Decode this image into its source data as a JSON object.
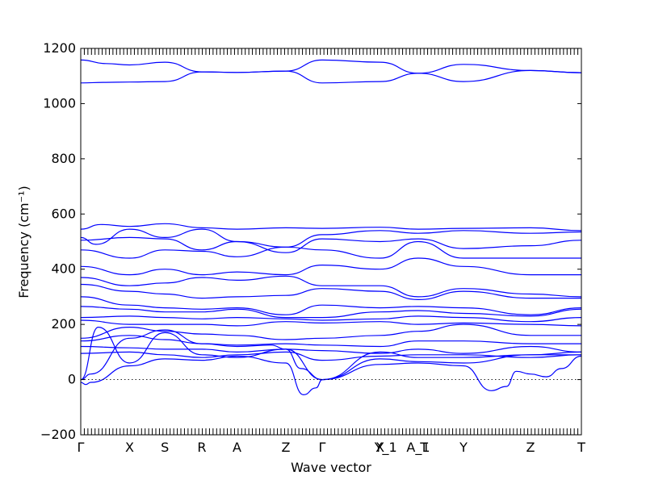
{
  "chart_data": {
    "type": "line",
    "title": "",
    "xlabel": "Wave vector",
    "ylabel": "Frequency (cm⁻¹)",
    "ylim": [
      -200,
      1200
    ],
    "yticks": [
      -200,
      0,
      200,
      400,
      600,
      800,
      1000,
      1200
    ],
    "grid": false,
    "legend": "none",
    "line_color": "#0000ff",
    "reference_line": {
      "y": 0,
      "style": "dotted",
      "color": "#000000"
    },
    "high_symmetry_points": [
      {
        "label": "Γ",
        "x": 0.0
      },
      {
        "label": "X",
        "x": 0.0976
      },
      {
        "label": "S",
        "x": 0.1681
      },
      {
        "label": "R",
        "x": 0.2419
      },
      {
        "label": "A",
        "x": 0.3121
      },
      {
        "label": "Z",
        "x": 0.4097
      },
      {
        "label": "Γ",
        "x": 0.4822
      },
      {
        "label": "X",
        "x": 0.5977
      },
      {
        "label": "Y_1",
        "x": 0.6093
      },
      {
        "label": "A_1",
        "x": 0.6741
      },
      {
        "label": "T",
        "x": 0.6857
      },
      {
        "label": "Y",
        "x": 0.7645
      },
      {
        "label": "Z",
        "x": 0.8984
      },
      {
        "label": "T",
        "x": 1.0
      }
    ],
    "series": [
      {
        "x": [
          0.0,
          0.05,
          0.0976,
          0.1681,
          0.2419,
          0.3121,
          0.4097,
          0.4822,
          0.5977,
          0.6741,
          0.7645,
          0.8984,
          1.0
        ],
        "y": [
          1158,
          1145,
          1140,
          1150,
          1115,
          1113,
          1118,
          1158,
          1150,
          1110,
          1142,
          1120,
          1112
        ]
      },
      {
        "x": [
          0.0,
          0.05,
          0.0976,
          0.1681,
          0.2419,
          0.3121,
          0.4097,
          0.4822,
          0.5977,
          0.6741,
          0.7645,
          0.8984,
          1.0
        ],
        "y": [
          1075,
          1077,
          1078,
          1080,
          1115,
          1113,
          1118,
          1075,
          1080,
          1110,
          1080,
          1120,
          1112
        ]
      },
      {
        "x": [
          0.0,
          0.04,
          0.0976,
          0.1681,
          0.2419,
          0.3121,
          0.4097,
          0.4822,
          0.5977,
          0.6741,
          0.7645,
          0.8984,
          1.0
        ],
        "y": [
          545,
          562,
          555,
          565,
          550,
          545,
          550,
          548,
          552,
          545,
          548,
          550,
          540
        ]
      },
      {
        "x": [
          0.0,
          0.03,
          0.0976,
          0.1681,
          0.2419,
          0.3121,
          0.4097,
          0.4822,
          0.5977,
          0.6741,
          0.7645,
          0.8984,
          1.0
        ],
        "y": [
          515,
          490,
          545,
          515,
          545,
          500,
          480,
          525,
          540,
          530,
          540,
          530,
          535
        ]
      },
      {
        "x": [
          0.0,
          0.0976,
          0.1681,
          0.2419,
          0.3121,
          0.4097,
          0.4822,
          0.5977,
          0.6741,
          0.7645,
          0.8984,
          1.0
        ],
        "y": [
          505,
          515,
          510,
          470,
          500,
          460,
          510,
          500,
          510,
          475,
          485,
          505
        ]
      },
      {
        "x": [
          0.0,
          0.0976,
          0.1681,
          0.2419,
          0.3121,
          0.4097,
          0.4822,
          0.5977,
          0.6741,
          0.7645,
          0.8984,
          1.0
        ],
        "y": [
          470,
          440,
          470,
          465,
          445,
          480,
          470,
          440,
          500,
          440,
          440,
          440
        ]
      },
      {
        "x": [
          0.0,
          0.0976,
          0.1681,
          0.2419,
          0.3121,
          0.4097,
          0.4822,
          0.5977,
          0.6741,
          0.7645,
          0.8984,
          1.0
        ],
        "y": [
          410,
          380,
          400,
          380,
          390,
          380,
          415,
          400,
          440,
          410,
          380,
          380
        ]
      },
      {
        "x": [
          0.0,
          0.0976,
          0.1681,
          0.2419,
          0.3121,
          0.4097,
          0.4822,
          0.5977,
          0.6741,
          0.7645,
          0.8984,
          1.0
        ],
        "y": [
          370,
          340,
          350,
          370,
          360,
          375,
          340,
          340,
          300,
          330,
          310,
          300
        ]
      },
      {
        "x": [
          0.0,
          0.0976,
          0.1681,
          0.2419,
          0.3121,
          0.4097,
          0.4822,
          0.5977,
          0.6741,
          0.7645,
          0.8984,
          1.0
        ],
        "y": [
          345,
          320,
          310,
          295,
          300,
          305,
          330,
          320,
          290,
          320,
          295,
          295
        ]
      },
      {
        "x": [
          0.0,
          0.0976,
          0.1681,
          0.2419,
          0.3121,
          0.4097,
          0.4822,
          0.5977,
          0.6741,
          0.7645,
          0.8984,
          1.0
        ],
        "y": [
          300,
          270,
          260,
          255,
          260,
          235,
          270,
          260,
          265,
          260,
          235,
          260
        ]
      },
      {
        "x": [
          0.0,
          0.0976,
          0.1681,
          0.2419,
          0.3121,
          0.4097,
          0.4822,
          0.5977,
          0.6741,
          0.7645,
          0.8984,
          1.0
        ],
        "y": [
          265,
          255,
          245,
          245,
          255,
          225,
          225,
          245,
          250,
          240,
          230,
          255
        ]
      },
      {
        "x": [
          0.0,
          0.0976,
          0.1681,
          0.2419,
          0.3121,
          0.4097,
          0.4822,
          0.5977,
          0.6741,
          0.7645,
          0.8984,
          1.0
        ],
        "y": [
          225,
          230,
          225,
          220,
          225,
          220,
          215,
          220,
          230,
          225,
          210,
          225
        ]
      },
      {
        "x": [
          0.0,
          0.0976,
          0.1681,
          0.2419,
          0.3121,
          0.4097,
          0.4822,
          0.5977,
          0.6741,
          0.7645,
          0.8984,
          1.0
        ],
        "y": [
          215,
          200,
          200,
          200,
          195,
          210,
          205,
          210,
          200,
          205,
          200,
          195
        ]
      },
      {
        "x": [
          0.0,
          0.0976,
          0.1681,
          0.2419,
          0.3121,
          0.4097,
          0.4822,
          0.5977,
          0.6741,
          0.7645,
          0.8984,
          1.0
        ],
        "y": [
          150,
          190,
          175,
          165,
          160,
          145,
          150,
          160,
          175,
          200,
          160,
          160
        ]
      },
      {
        "x": [
          0.0,
          0.0976,
          0.1681,
          0.2419,
          0.3121,
          0.4097,
          0.4822,
          0.5977,
          0.6741,
          0.7645,
          0.8984,
          1.0
        ],
        "y": [
          140,
          160,
          145,
          130,
          125,
          130,
          125,
          120,
          140,
          140,
          130,
          130
        ]
      },
      {
        "x": [
          0.0,
          0.0976,
          0.1681,
          0.2419,
          0.3121,
          0.4097,
          0.4822,
          0.5977,
          0.6741,
          0.7645,
          0.8984,
          1.0
        ],
        "y": [
          120,
          115,
          110,
          110,
          100,
          110,
          105,
          95,
          110,
          95,
          120,
          100
        ]
      },
      {
        "x": [
          0.0,
          0.0976,
          0.1681,
          0.2419,
          0.3121,
          0.4097,
          0.4822,
          0.5977,
          0.6741,
          0.7645,
          0.8984,
          1.0
        ],
        "y": [
          95,
          100,
          90,
          80,
          90,
          100,
          70,
          85,
          90,
          90,
          80,
          90
        ]
      },
      {
        "x": [
          0.0,
          0.035,
          0.0976,
          0.1681,
          0.2419,
          0.3121,
          0.4097,
          0.4822,
          0.5977,
          0.6741,
          0.7645,
          0.8984,
          1.0
        ],
        "y": [
          0,
          190,
          60,
          170,
          90,
          80,
          110,
          0,
          100,
          80,
          80,
          90,
          90
        ]
      },
      {
        "x": [
          0.0,
          0.02,
          0.0976,
          0.1681,
          0.2419,
          0.3121,
          0.38,
          0.4097,
          0.44,
          0.4822,
          0.5977,
          0.6741,
          0.7645,
          0.8984,
          1.0
        ],
        "y": [
          0,
          20,
          150,
          180,
          130,
          120,
          125,
          110,
          40,
          0,
          75,
          65,
          60,
          90,
          100
        ]
      },
      {
        "x": [
          0.0,
          0.01,
          0.02,
          0.0976,
          0.1681,
          0.2419,
          0.3121,
          0.4097,
          0.445,
          0.47,
          0.4822,
          0.5977,
          0.6741,
          0.7645,
          0.82,
          0.85,
          0.87,
          0.8984,
          0.93,
          0.96,
          1.0
        ],
        "y": [
          -10,
          -18,
          -10,
          50,
          75,
          70,
          85,
          60,
          -55,
          -30,
          0,
          55,
          60,
          50,
          -40,
          -25,
          30,
          20,
          10,
          40,
          85
        ]
      }
    ]
  }
}
